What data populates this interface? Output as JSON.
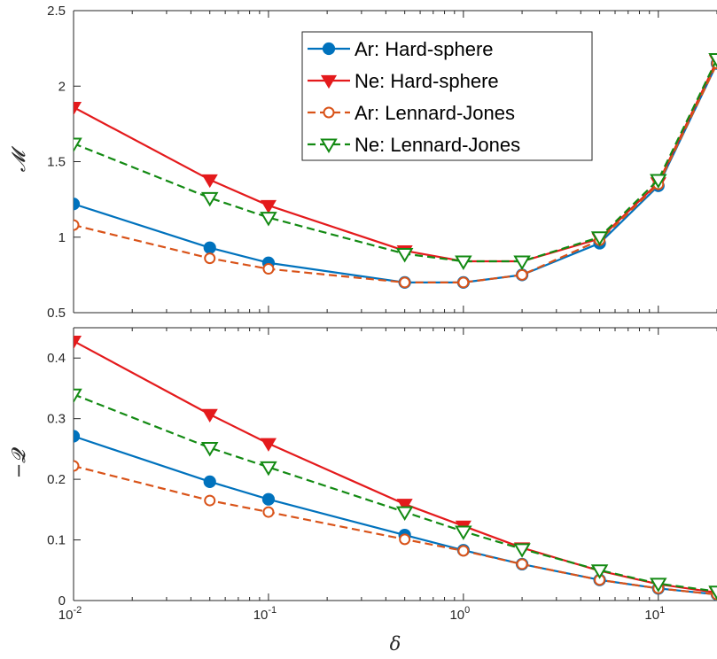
{
  "chart_data": [
    {
      "type": "line",
      "xscale": "log",
      "xlim": [
        0.01,
        20
      ],
      "ylim": [
        0.5,
        2.5
      ],
      "ylabel": "𝓜",
      "xlabel": "",
      "xticks": [
        {
          "value": 0.01,
          "base": "10",
          "exp": "-2"
        },
        {
          "value": 0.1,
          "base": "10",
          "exp": "-1"
        },
        {
          "value": 1,
          "base": "10",
          "exp": "0"
        },
        {
          "value": 10,
          "base": "10",
          "exp": "1"
        }
      ],
      "xtick_labels_shown": false,
      "yticks": [
        {
          "value": 0.5,
          "label": "0.5"
        },
        {
          "value": 1,
          "label": "1"
        },
        {
          "value": 1.5,
          "label": "1.5"
        },
        {
          "value": 2,
          "label": "2"
        },
        {
          "value": 2.5,
          "label": "2.5"
        }
      ],
      "grid": false,
      "legend": "top-right",
      "x": [
        0.01,
        0.05,
        0.1,
        0.5,
        1,
        2,
        5,
        10,
        20
      ],
      "series": [
        {
          "name": "Ar: Hard-sphere",
          "color": "#0072BD",
          "line": "solid",
          "marker": "circle-filled",
          "values": [
            1.22,
            0.93,
            0.83,
            0.7,
            0.7,
            0.75,
            0.96,
            1.34,
            2.15
          ]
        },
        {
          "name": "Ne: Hard-sphere",
          "color": "#E41A1C",
          "line": "solid",
          "marker": "triangle-down-filled",
          "values": [
            1.86,
            1.38,
            1.21,
            0.91,
            0.84,
            0.84,
            0.99,
            1.36,
            2.17
          ]
        },
        {
          "name": "Ar: Lennard-Jones",
          "color": "#D95319",
          "line": "dashed",
          "marker": "circle-open",
          "values": [
            1.08,
            0.86,
            0.79,
            0.7,
            0.7,
            0.75,
            0.98,
            1.35,
            2.15
          ]
        },
        {
          "name": "Ne: Lennard-Jones",
          "color": "#138A13",
          "line": "dashed",
          "marker": "triangle-down-open",
          "values": [
            1.62,
            1.26,
            1.13,
            0.89,
            0.84,
            0.84,
            1.0,
            1.38,
            2.18
          ]
        }
      ]
    },
    {
      "type": "line",
      "xscale": "log",
      "xlim": [
        0.01,
        20
      ],
      "ylim": [
        0,
        0.45
      ],
      "ylabel": "−𝓠",
      "xlabel": "δ",
      "xticks": [
        {
          "value": 0.01,
          "base": "10",
          "exp": "-2"
        },
        {
          "value": 0.1,
          "base": "10",
          "exp": "-1"
        },
        {
          "value": 1,
          "base": "10",
          "exp": "0"
        },
        {
          "value": 10,
          "base": "10",
          "exp": "1"
        }
      ],
      "xtick_labels_shown": true,
      "yticks": [
        {
          "value": 0,
          "label": "0"
        },
        {
          "value": 0.1,
          "label": "0.1"
        },
        {
          "value": 0.2,
          "label": "0.2"
        },
        {
          "value": 0.3,
          "label": "0.3"
        },
        {
          "value": 0.4,
          "label": "0.4"
        }
      ],
      "grid": false,
      "x": [
        0.01,
        0.05,
        0.1,
        0.5,
        1,
        2,
        5,
        10,
        20
      ],
      "series": [
        {
          "name": "Ar: Hard-sphere",
          "color": "#0072BD",
          "line": "solid",
          "marker": "circle-filled",
          "values": [
            0.271,
            0.196,
            0.167,
            0.108,
            0.083,
            0.06,
            0.034,
            0.02,
            0.01
          ]
        },
        {
          "name": "Ne: Hard-sphere",
          "color": "#E41A1C",
          "line": "solid",
          "marker": "triangle-down-filled",
          "values": [
            0.428,
            0.307,
            0.259,
            0.159,
            0.123,
            0.087,
            0.049,
            0.027,
            0.013
          ]
        },
        {
          "name": "Ar: Lennard-Jones",
          "color": "#D95319",
          "line": "dashed",
          "marker": "circle-open",
          "values": [
            0.222,
            0.165,
            0.146,
            0.101,
            0.082,
            0.06,
            0.034,
            0.02,
            0.01
          ]
        },
        {
          "name": "Ne: Lennard-Jones",
          "color": "#138A13",
          "line": "dashed",
          "marker": "triangle-down-open",
          "values": [
            0.34,
            0.252,
            0.22,
            0.146,
            0.114,
            0.085,
            0.05,
            0.028,
            0.015
          ]
        }
      ]
    }
  ]
}
